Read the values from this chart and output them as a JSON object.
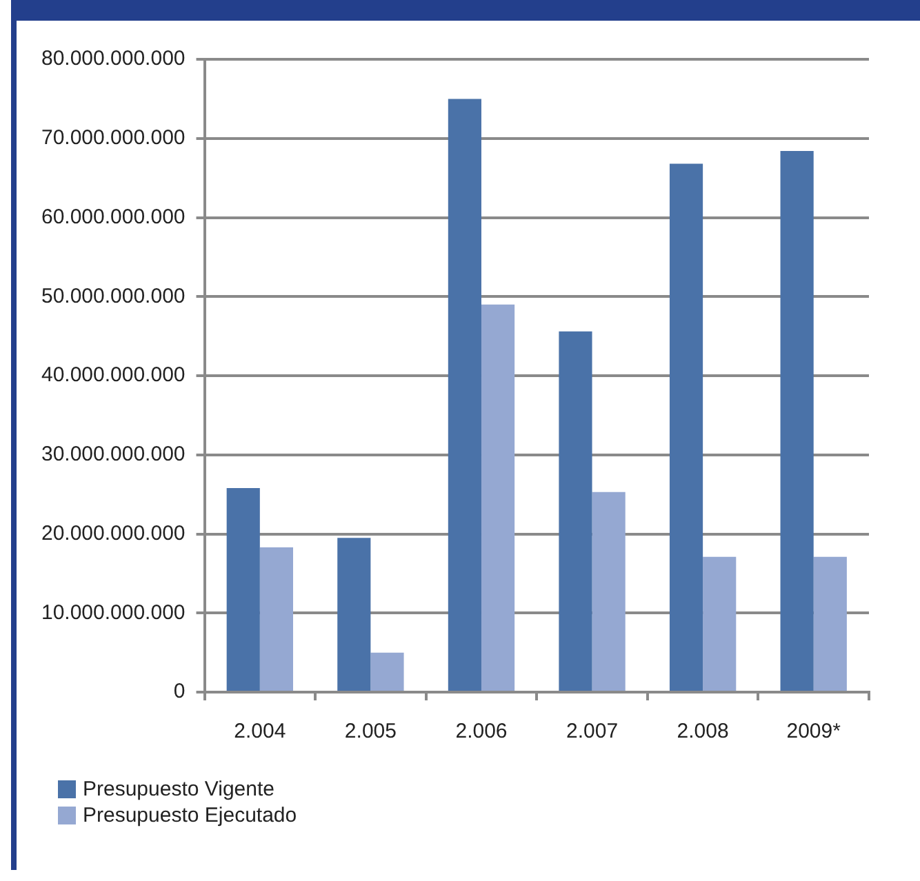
{
  "chart_data": {
    "type": "bar",
    "categories": [
      "2.004",
      "2.005",
      "2.006",
      "2.007",
      "2.008",
      "2009*"
    ],
    "series": [
      {
        "name": "Presupuesto Vigente",
        "color": "#4a72a8",
        "values": [
          25800000000,
          19500000000,
          75000000000,
          45600000000,
          66800000000,
          68400000000
        ]
      },
      {
        "name": "Presupuesto Ejecutado",
        "color": "#95a8d2",
        "values": [
          18300000000,
          5000000000,
          49000000000,
          25300000000,
          17100000000,
          17100000000
        ]
      }
    ],
    "ylim": [
      0,
      80000000000
    ],
    "yticks": [
      {
        "value": 0,
        "label": "0"
      },
      {
        "value": 10000000000,
        "label": "10.000.000.000"
      },
      {
        "value": 20000000000,
        "label": "20.000.000.000"
      },
      {
        "value": 30000000000,
        "label": "30.000.000.000"
      },
      {
        "value": 40000000000,
        "label": "40.000.000.000"
      },
      {
        "value": 50000000000,
        "label": "50.000.000.000"
      },
      {
        "value": 60000000000,
        "label": "60.000.000.000"
      },
      {
        "value": 70000000000,
        "label": "70.000.000.000"
      },
      {
        "value": 80000000000,
        "label": "80.000.000.000"
      }
    ],
    "grid": "y",
    "legend": "bottom left"
  }
}
